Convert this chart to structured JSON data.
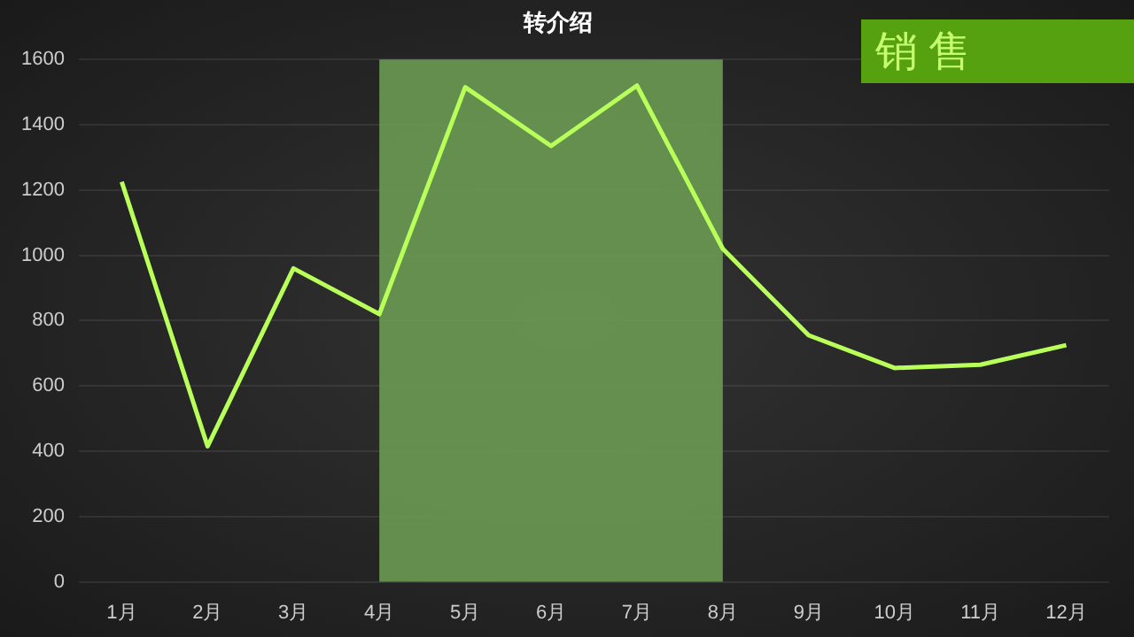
{
  "chart_data": {
    "type": "line",
    "title": "转介绍",
    "annotations": [
      "销售"
    ],
    "categories": [
      "1月",
      "2月",
      "3月",
      "4月",
      "5月",
      "6月",
      "7月",
      "8月",
      "9月",
      "10月",
      "11月",
      "12月"
    ],
    "series": [
      {
        "color": "#b8ff5a",
        "values": [
          1225,
          415,
          960,
          820,
          1515,
          1335,
          1520,
          1020,
          755,
          655,
          665,
          725
        ]
      }
    ],
    "ylim": [
      0,
      1600
    ],
    "yticks": [
      0,
      200,
      400,
      600,
      800,
      1000,
      1200,
      1400,
      1600
    ],
    "bands": [
      {
        "axis": "x",
        "from": "4月",
        "to": "8月",
        "color": "#6a9a52"
      }
    ],
    "grid": "y",
    "legend": false,
    "marker": "none",
    "line_style": "solid"
  }
}
